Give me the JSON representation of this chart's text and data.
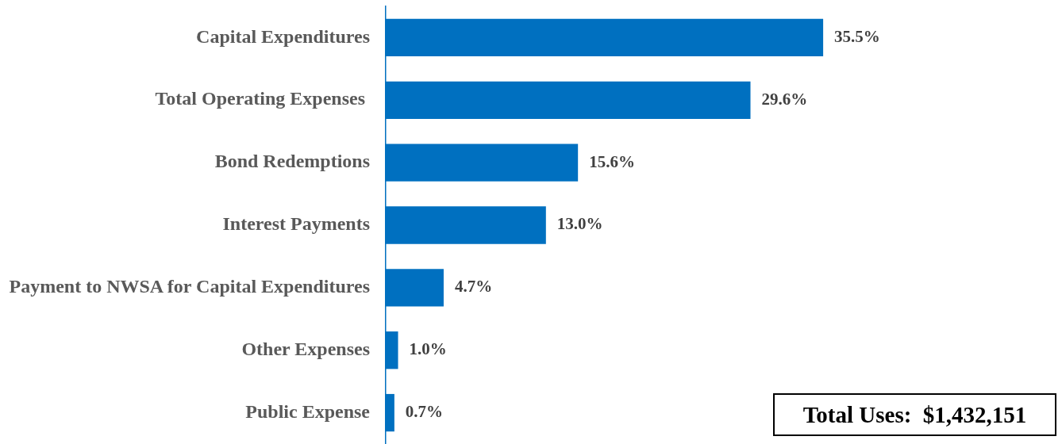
{
  "chart_data": {
    "type": "bar",
    "orientation": "horizontal",
    "categories": [
      "Capital Expenditures",
      "Total Operating Expenses ",
      "Bond Redemptions",
      "Interest Payments",
      "Payment to NWSA for Capital Expenditures",
      "Other Expenses",
      "Public Expense"
    ],
    "values": [
      35.5,
      29.6,
      15.6,
      13.0,
      4.7,
      1.0,
      0.7
    ],
    "value_labels": [
      "35.5%",
      "29.6%",
      "15.6%",
      "13.0%",
      "4.7%",
      "1.0%",
      "0.7%"
    ],
    "color": "#0070c0",
    "annotations": [
      "Total Uses:  $1,432,151"
    ]
  }
}
